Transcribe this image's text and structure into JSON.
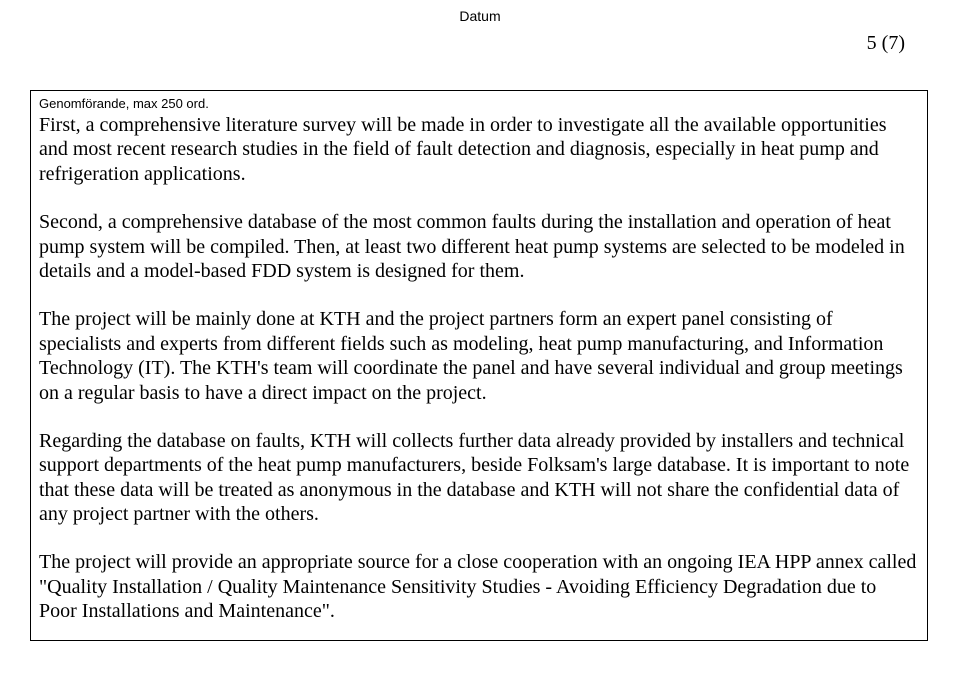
{
  "header": {
    "label": "Datum",
    "page_number": "5 (7)"
  },
  "box": {
    "label": "Genomförande, max 250 ord.",
    "paragraphs": {
      "p1": "First, a comprehensive literature survey will be made in order to investigate all the available opportunities and most recent research studies in the field of fault detection and diagnosis, especially in heat pump and refrigeration applications.",
      "p2": "Second, a comprehensive database of the most common faults during the installation and operation of heat pump system will be compiled. Then, at least two different heat pump systems are selected to be modeled in details and a model-based FDD system is designed for them.",
      "p3": "The project will be mainly done at KTH and the project partners form an expert panel consisting of specialists and experts from different fields such as modeling, heat pump manufacturing, and Information Technology (IT). The KTH's team will coordinate the panel and have several individual and group meetings on a regular basis to have a direct impact on the project.",
      "p4": "Regarding the database on faults, KTH will collects further data already provided by installers and technical support departments of the heat pump manufacturers, beside Folksam's large database. It is important to note that these data will be treated as anonymous in the database and KTH will not share the confidential data of any project partner with the others.",
      "p5": "The project will provide an appropriate source for a close cooperation with an ongoing IEA HPP annex called \"Quality Installation / Quality Maintenance Sensitivity Studies - Avoiding Efficiency Degradation due to Poor Installations and Maintenance\"."
    }
  }
}
